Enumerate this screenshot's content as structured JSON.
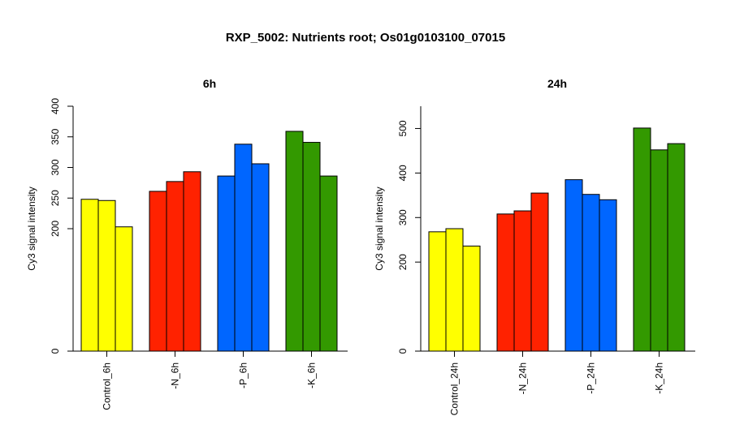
{
  "figure": {
    "title": "RXP_5002: Nutrients root; Os01g0103100_07015"
  },
  "chart_data": [
    {
      "type": "bar",
      "title": "6h",
      "ylabel": "Cy3 signal intensity",
      "ylim": [
        0,
        400
      ],
      "yticks": [
        "0",
        "200",
        "250",
        "300",
        "350",
        "400"
      ],
      "categories": [
        "Control_6h",
        "-N_6h",
        "-P_6h",
        "-K_6h"
      ],
      "colors": [
        "#ffff00",
        "#ff2200",
        "#0066ff",
        "#339900"
      ],
      "values": [
        [
          248,
          246,
          203
        ],
        [
          261,
          277,
          293
        ],
        [
          286,
          338,
          306
        ],
        [
          359,
          341,
          286
        ]
      ]
    },
    {
      "type": "bar",
      "title": "24h",
      "ylabel": "Cy3 signal intensity",
      "ylim": [
        0,
        550
      ],
      "yticks": [
        "0",
        "200",
        "300",
        "400",
        "500"
      ],
      "categories": [
        "Control_24h",
        "-N_24h",
        "-P_24h",
        "-K_24h"
      ],
      "colors": [
        "#ffff00",
        "#ff2200",
        "#0066ff",
        "#339900"
      ],
      "values": [
        [
          268,
          275,
          236
        ],
        [
          308,
          315,
          355
        ],
        [
          385,
          352,
          340
        ],
        [
          501,
          452,
          466
        ]
      ]
    }
  ]
}
